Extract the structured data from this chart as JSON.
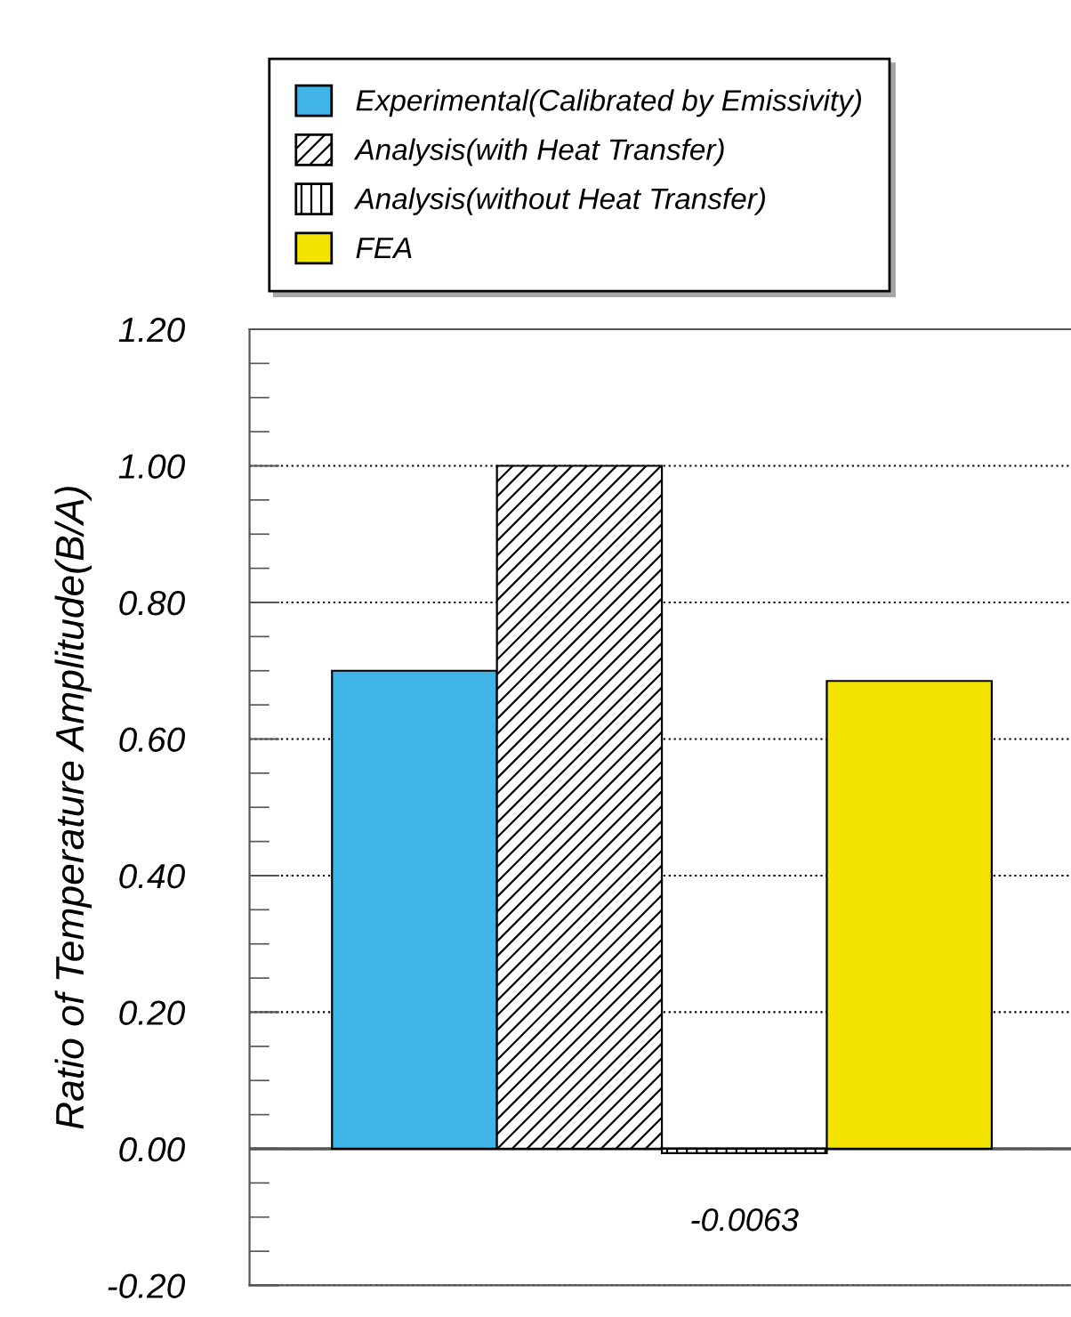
{
  "chart_data": {
    "type": "bar",
    "ylabel": "Ratio of Temperature Amplitude(B/A)",
    "categories": [
      null
    ],
    "series": [
      {
        "name": "Experimental(Calibrated by Emissivity)",
        "color": "#41b4e8",
        "values": [
          0.7
        ]
      },
      {
        "name": "Analysis(with Heat Transfer)",
        "color": "#000000",
        "values": [
          1.0
        ]
      },
      {
        "name": "Analysis(without Heat Transfer)",
        "color": "#000000",
        "values": [
          -0.0063
        ],
        "value_labels": [
          "-0.0063"
        ]
      },
      {
        "name": "FEA",
        "color": "#f5e400",
        "values": [
          0.685
        ]
      }
    ],
    "ylim": [
      -0.2,
      1.2
    ],
    "yticks": [
      {
        "value": -0.2,
        "label": "-0.20"
      },
      {
        "value": 0,
        "label": "0.00"
      },
      {
        "value": 0.2,
        "label": "0.20"
      },
      {
        "value": 0.4,
        "label": "0.40"
      },
      {
        "value": 0.6,
        "label": "0.60"
      },
      {
        "value": 0.8,
        "label": "0.80"
      },
      {
        "value": 1.0,
        "label": "1.00"
      },
      {
        "value": 1.2,
        "label": "1.20"
      }
    ],
    "ref_lines": [
      {
        "axis": "y",
        "value": 0,
        "color": "#555555",
        "line_style": "solid"
      }
    ],
    "grid": "y",
    "legend": "top"
  }
}
